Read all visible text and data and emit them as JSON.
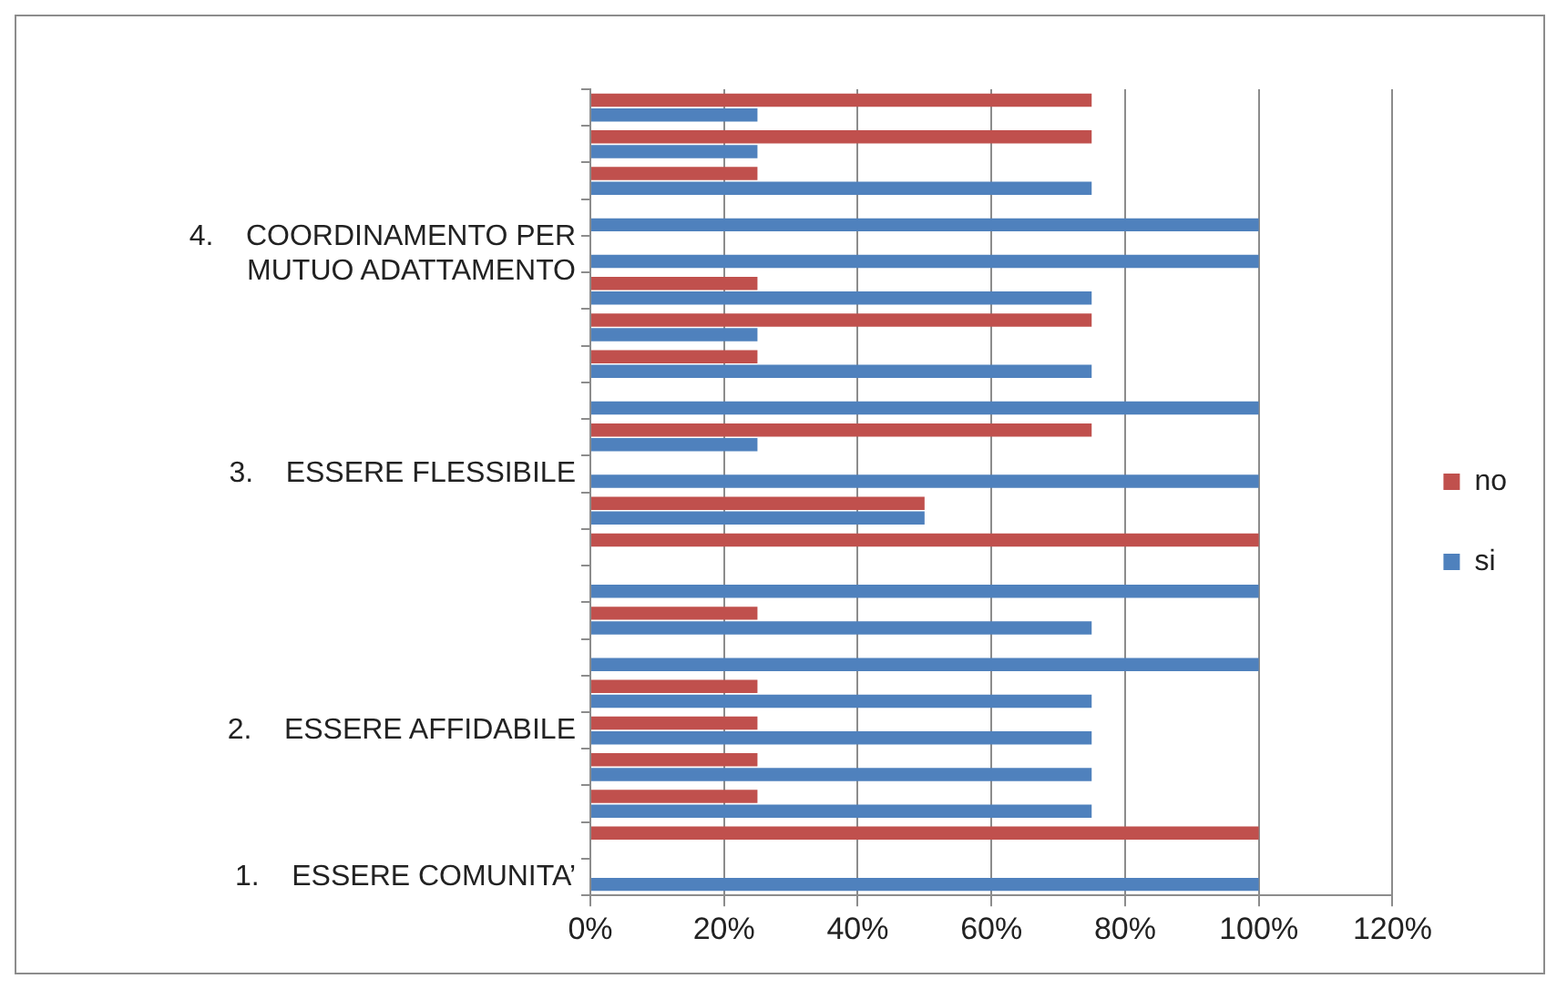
{
  "chart_data": {
    "type": "bar",
    "orientation": "horizontal",
    "categories": [
      null,
      null,
      null,
      null,
      "4.    COORDINAMENTO PER MUTUO ADATTAMENTO",
      null,
      null,
      null,
      null,
      null,
      "3.    ESSERE FLESSIBILE",
      null,
      null,
      null,
      null,
      null,
      null,
      "2.    ESSERE AFFIDABILE",
      null,
      null,
      null,
      "1.    ESSERE COMUNITA’"
    ],
    "series": [
      {
        "name": "no",
        "color": "#c0504d",
        "values": [
          75,
          75,
          25,
          0,
          0,
          25,
          75,
          25,
          0,
          75,
          0,
          50,
          100,
          0,
          25,
          0,
          25,
          25,
          25,
          25,
          100,
          0
        ]
      },
      {
        "name": "si",
        "color": "#4f81bd",
        "values": [
          25,
          25,
          75,
          100,
          100,
          75,
          25,
          75,
          100,
          25,
          100,
          50,
          0,
          100,
          75,
          100,
          75,
          75,
          75,
          75,
          0,
          100
        ]
      }
    ],
    "xlim": [
      0,
      120
    ],
    "xticks": [
      {
        "value": 0,
        "label": "0%"
      },
      {
        "value": 20,
        "label": "20%"
      },
      {
        "value": 40,
        "label": "40%"
      },
      {
        "value": 60,
        "label": "60%"
      },
      {
        "value": 80,
        "label": "80%"
      },
      {
        "value": 100,
        "label": "100%"
      },
      {
        "value": 120,
        "label": "120%"
      }
    ],
    "grid": "x",
    "legend": "right"
  }
}
